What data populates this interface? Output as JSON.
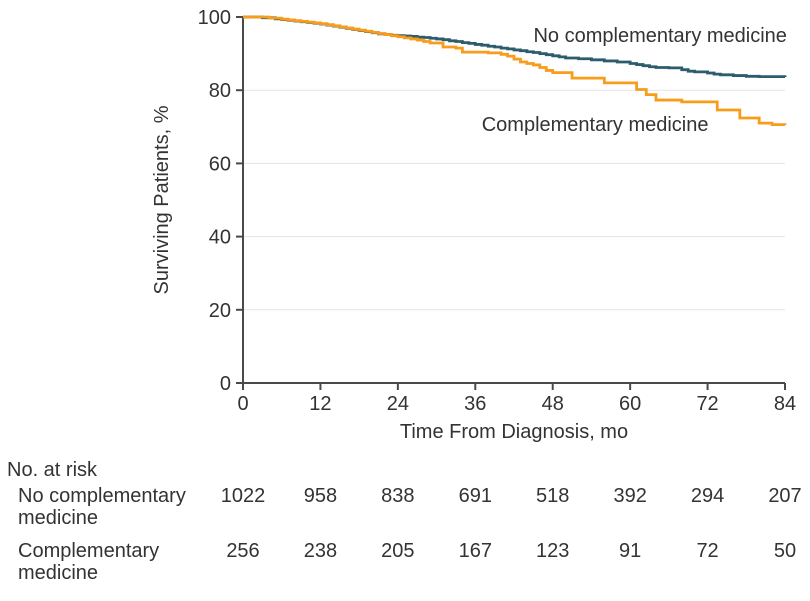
{
  "chart_data": {
    "type": "line",
    "subtype": "kaplan-meier-step",
    "xlabel": "Time From Diagnosis, mo",
    "ylabel": "Surviving Patients, %",
    "xlim": [
      0,
      84
    ],
    "ylim": [
      0,
      100
    ],
    "xticks": [
      0,
      12,
      24,
      36,
      48,
      60,
      72,
      84
    ],
    "yticks": [
      0,
      20,
      40,
      60,
      80,
      100
    ],
    "gridlines_y": [
      20,
      40,
      60,
      80
    ],
    "grid_color": "#e5e5e5",
    "axis_color": "#4a4a4a",
    "text_color": "#333333",
    "legend_position": "inline-annotations",
    "series": [
      {
        "name": "No complementary medicine",
        "color": "#2d5d6d",
        "label_pos": {
          "month": 84.3,
          "pct": 93.2,
          "anchor": "end"
        },
        "points": [
          [
            0,
            100
          ],
          [
            3,
            99.8
          ],
          [
            5,
            99.5
          ],
          [
            6,
            99.3
          ],
          [
            7,
            99.1
          ],
          [
            8,
            98.9
          ],
          [
            9,
            98.7
          ],
          [
            10,
            98.5
          ],
          [
            11,
            98.3
          ],
          [
            12,
            98.1
          ],
          [
            13,
            97.8
          ],
          [
            14,
            97.5
          ],
          [
            15,
            97.2
          ],
          [
            16,
            96.9
          ],
          [
            17,
            96.6
          ],
          [
            18,
            96.3
          ],
          [
            19,
            96.0
          ],
          [
            20,
            95.7
          ],
          [
            21,
            95.4
          ],
          [
            22,
            95.2
          ],
          [
            23,
            95.0
          ],
          [
            24,
            94.9
          ],
          [
            25,
            94.8
          ],
          [
            26,
            94.7
          ],
          [
            27,
            94.5
          ],
          [
            28,
            94.4
          ],
          [
            29,
            94.2
          ],
          [
            30,
            94.0
          ],
          [
            31,
            93.8
          ],
          [
            32,
            93.5
          ],
          [
            33,
            93.3
          ],
          [
            34,
            93.0
          ],
          [
            35,
            92.8
          ],
          [
            36,
            92.5
          ],
          [
            37,
            92.3
          ],
          [
            38,
            92.0
          ],
          [
            39,
            91.8
          ],
          [
            40,
            91.5
          ],
          [
            41,
            91.3
          ],
          [
            42,
            91.0
          ],
          [
            43,
            90.8
          ],
          [
            44,
            90.5
          ],
          [
            45,
            90.3
          ],
          [
            46,
            90.0
          ],
          [
            47,
            89.7
          ],
          [
            48,
            89.4
          ],
          [
            49,
            89.1
          ],
          [
            50,
            88.8
          ],
          [
            52,
            88.6
          ],
          [
            54,
            88.3
          ],
          [
            56,
            88.0
          ],
          [
            58,
            87.7
          ],
          [
            60,
            87.3
          ],
          [
            61,
            87.0
          ],
          [
            62,
            86.7
          ],
          [
            63,
            86.4
          ],
          [
            64,
            86.2
          ],
          [
            66,
            86.1
          ],
          [
            68,
            85.6
          ],
          [
            69,
            85.2
          ],
          [
            70,
            85.0
          ],
          [
            72,
            84.7
          ],
          [
            73,
            84.4
          ],
          [
            74,
            84.2
          ],
          [
            76,
            84.0
          ],
          [
            78,
            83.8
          ],
          [
            80,
            83.7
          ],
          [
            84,
            83.6
          ]
        ]
      },
      {
        "name": "Complementary medicine",
        "color": "#f89c1c",
        "label_pos": {
          "month": 37.0,
          "pct": 68.9,
          "anchor": "start"
        },
        "points": [
          [
            0,
            100
          ],
          [
            4,
            99.7
          ],
          [
            6,
            99.4
          ],
          [
            7,
            99.2
          ],
          [
            8,
            99.0
          ],
          [
            9,
            98.8
          ],
          [
            10,
            98.6
          ],
          [
            11,
            98.4
          ],
          [
            12,
            98.2
          ],
          [
            13,
            97.9
          ],
          [
            14,
            97.6
          ],
          [
            15,
            97.3
          ],
          [
            16,
            97.0
          ],
          [
            17,
            96.7
          ],
          [
            18,
            96.4
          ],
          [
            19,
            96.1
          ],
          [
            20,
            95.8
          ],
          [
            21,
            95.5
          ],
          [
            22,
            95.2
          ],
          [
            23,
            94.9
          ],
          [
            24,
            94.6
          ],
          [
            25,
            94.3
          ],
          [
            26,
            94.0
          ],
          [
            27,
            93.7
          ],
          [
            28,
            93.3
          ],
          [
            29,
            92.9
          ],
          [
            31,
            91.8
          ],
          [
            33,
            91.5
          ],
          [
            34,
            90.4
          ],
          [
            38,
            90.2
          ],
          [
            40,
            89.8
          ],
          [
            41,
            89.3
          ],
          [
            42,
            88.5
          ],
          [
            43,
            87.7
          ],
          [
            44,
            87.3
          ],
          [
            45,
            86.9
          ],
          [
            46,
            86.2
          ],
          [
            47,
            85.4
          ],
          [
            48,
            84.8
          ],
          [
            51,
            83.3
          ],
          [
            56,
            82.0
          ],
          [
            61,
            80.2
          ],
          [
            62.5,
            78.8
          ],
          [
            64,
            77.3
          ],
          [
            68,
            76.8
          ],
          [
            73.5,
            74.6
          ],
          [
            77,
            72.4
          ],
          [
            80,
            71.0
          ],
          [
            82,
            70.6
          ],
          [
            84,
            70.5
          ]
        ]
      }
    ]
  },
  "at_risk": {
    "header": "No. at risk",
    "rows": [
      {
        "label_lines": [
          "No complementary",
          "medicine"
        ],
        "values": [
          1022,
          958,
          838,
          691,
          518,
          392,
          294,
          207
        ]
      },
      {
        "label_lines": [
          "Complementary",
          "medicine"
        ],
        "values": [
          256,
          238,
          205,
          167,
          123,
          91,
          72,
          50
        ]
      }
    ]
  }
}
